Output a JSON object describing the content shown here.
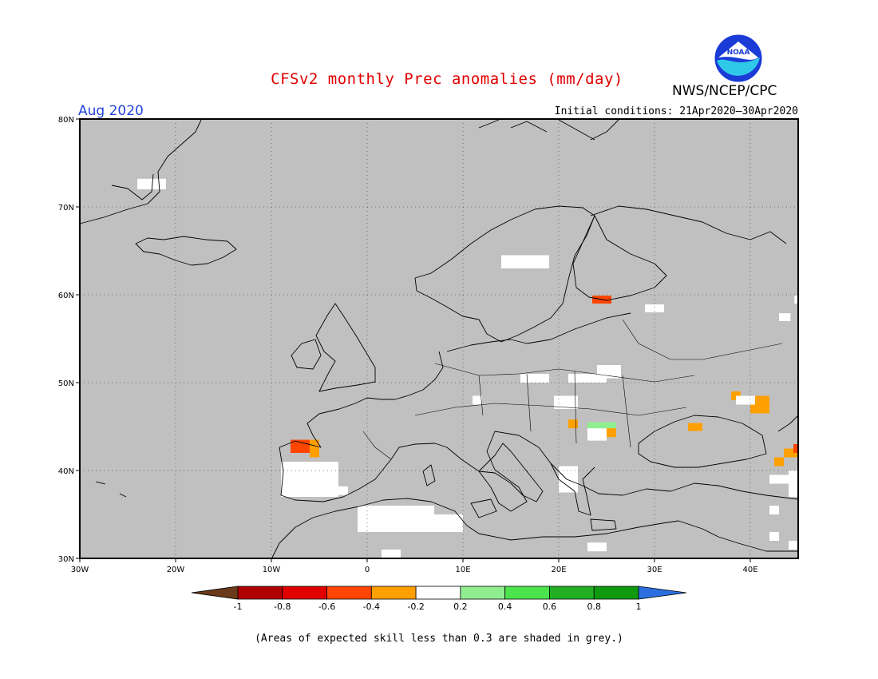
{
  "title": "CFSv2 monthly Prec anomalies (mm/day)",
  "agency": "NWS/NCEP/CPC",
  "logo_text": "NOAA",
  "month_label": "Aug 2020",
  "initial_conditions": "Initial conditions: 21Apr2020–30Apr2020",
  "footnote": "(Areas of expected skill less than 0.3 are shaded in grey.)",
  "colors": {
    "skill_mask": "#c0c0c0",
    "coast": "#000000",
    "neutral": "#ffffff"
  },
  "map": {
    "lon_range": [
      -30,
      45
    ],
    "lat_range": [
      30,
      80
    ],
    "lat_ticks": [
      "30N",
      "40N",
      "50N",
      "60N",
      "70N",
      "80N"
    ],
    "lon_ticks": [
      "30W",
      "20W",
      "10W",
      "0",
      "10E",
      "20E",
      "30E",
      "40E"
    ],
    "lat_tick_values": [
      30,
      40,
      50,
      60,
      70,
      80
    ],
    "lon_tick_values": [
      -30,
      -20,
      -10,
      0,
      10,
      20,
      30,
      40
    ],
    "gridlines": "dotted"
  },
  "colorbar": {
    "labels": [
      "-1",
      "-0.8",
      "-0.6",
      "-0.4",
      "-0.2",
      "0.2",
      "0.4",
      "0.6",
      "0.8",
      "1"
    ],
    "colors": [
      "#6b3a1a",
      "#b00000",
      "#e00000",
      "#ff4500",
      "#ffa000",
      "#ffffff",
      "#90ee90",
      "#4ce44c",
      "#22b022",
      "#0f9a0f",
      "#2e6fe0"
    ]
  },
  "anomaly_cells": [
    {
      "lon": -24,
      "lat": 72,
      "w": 3,
      "h": 1.2,
      "cat": "neutral"
    },
    {
      "lon": 14,
      "lat": 63,
      "w": 5,
      "h": 1.5,
      "cat": "neutral"
    },
    {
      "lon": 23.5,
      "lat": 59,
      "w": 2,
      "h": 0.9,
      "cat": "red"
    },
    {
      "lon": 29,
      "lat": 58,
      "w": 2,
      "h": 0.9,
      "cat": "neutral"
    },
    {
      "lon": 43,
      "lat": 57,
      "w": 1.2,
      "h": 0.9,
      "cat": "neutral"
    },
    {
      "lon": 44.6,
      "lat": 59,
      "w": 0.5,
      "h": 0.9,
      "cat": "neutral"
    },
    {
      "lon": 16,
      "lat": 50,
      "w": 3,
      "h": 1,
      "cat": "neutral"
    },
    {
      "lon": 21,
      "lat": 50,
      "w": 4,
      "h": 1,
      "cat": "neutral"
    },
    {
      "lon": 24,
      "lat": 50.5,
      "w": 2.5,
      "h": 1.5,
      "cat": "neutral"
    },
    {
      "lon": 11,
      "lat": 47.5,
      "w": 1,
      "h": 1,
      "cat": "neutral"
    },
    {
      "lon": 19.5,
      "lat": 47,
      "w": 2.5,
      "h": 1.5,
      "cat": "neutral"
    },
    {
      "lon": 23,
      "lat": 44.5,
      "w": 3,
      "h": 1,
      "cat": "light-green"
    },
    {
      "lon": 21,
      "lat": 44.8,
      "w": 1,
      "h": 1,
      "cat": "orange"
    },
    {
      "lon": 25,
      "lat": 43.8,
      "w": 1,
      "h": 1,
      "cat": "orange"
    },
    {
      "lon": 23,
      "lat": 43.4,
      "w": 2,
      "h": 1.4,
      "cat": "neutral"
    },
    {
      "lon": 38,
      "lat": 48,
      "w": 1,
      "h": 1,
      "cat": "orange"
    },
    {
      "lon": 40,
      "lat": 46.5,
      "w": 2,
      "h": 2,
      "cat": "orange"
    },
    {
      "lon": 38.5,
      "lat": 47.5,
      "w": 2,
      "h": 1,
      "cat": "neutral"
    },
    {
      "lon": 33.5,
      "lat": 44.5,
      "w": 1.5,
      "h": 0.9,
      "cat": "orange"
    },
    {
      "lon": -8,
      "lat": 42,
      "w": 2,
      "h": 1.5,
      "cat": "red"
    },
    {
      "lon": -6,
      "lat": 41.5,
      "w": 1,
      "h": 2,
      "cat": "orange"
    },
    {
      "lon": -9,
      "lat": 37,
      "w": 6,
      "h": 4,
      "cat": "neutral"
    },
    {
      "lon": -4,
      "lat": 37.2,
      "w": 2,
      "h": 1,
      "cat": "neutral"
    },
    {
      "lon": -1,
      "lat": 33,
      "w": 8,
      "h": 3,
      "cat": "neutral"
    },
    {
      "lon": 7,
      "lat": 33,
      "w": 3,
      "h": 2,
      "cat": "neutral"
    },
    {
      "lon": 1.5,
      "lat": 30,
      "w": 2,
      "h": 1,
      "cat": "neutral"
    },
    {
      "lon": 20,
      "lat": 37.5,
      "w": 2,
      "h": 3,
      "cat": "neutral"
    },
    {
      "lon": 23,
      "lat": 30.8,
      "w": 2,
      "h": 1,
      "cat": "neutral"
    },
    {
      "lon": 43.5,
      "lat": 41.5,
      "w": 1.5,
      "h": 1,
      "cat": "orange"
    },
    {
      "lon": 44.5,
      "lat": 42,
      "w": 0.5,
      "h": 1,
      "cat": "red"
    },
    {
      "lon": 42.5,
      "lat": 40.5,
      "w": 1,
      "h": 1,
      "cat": "orange"
    },
    {
      "lon": 42,
      "lat": 38.5,
      "w": 2,
      "h": 1,
      "cat": "neutral"
    },
    {
      "lon": 44,
      "lat": 37,
      "w": 1,
      "h": 3,
      "cat": "neutral"
    },
    {
      "lon": 42,
      "lat": 35,
      "w": 1,
      "h": 1,
      "cat": "neutral"
    },
    {
      "lon": 42,
      "lat": 32,
      "w": 1,
      "h": 1,
      "cat": "neutral"
    },
    {
      "lon": 44,
      "lat": 31,
      "w": 1,
      "h": 1,
      "cat": "neutral"
    }
  ]
}
